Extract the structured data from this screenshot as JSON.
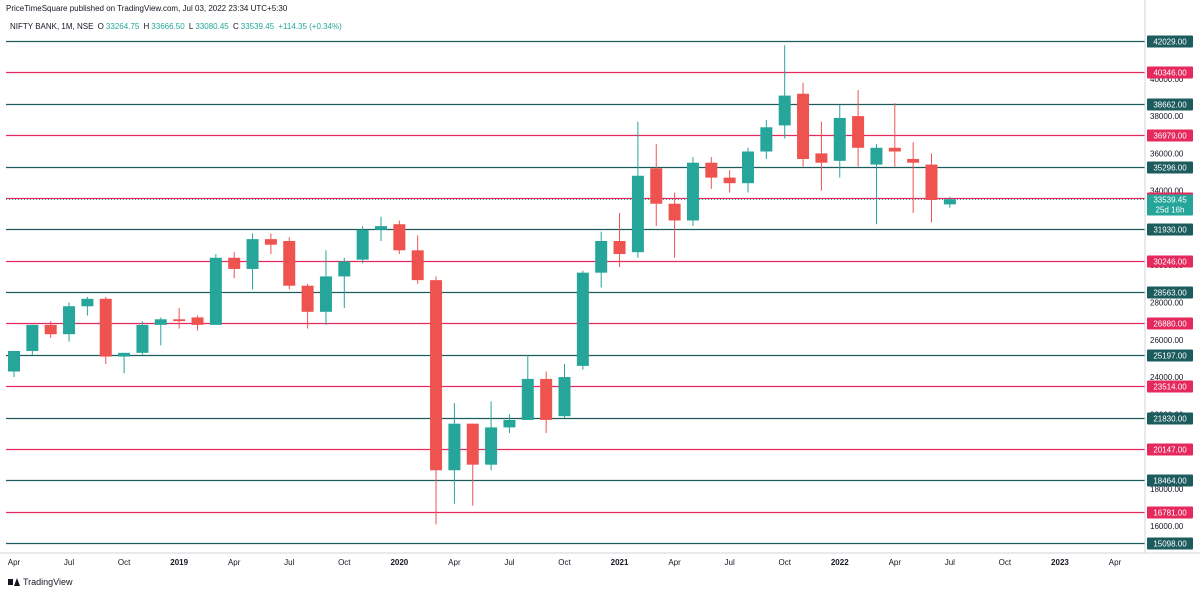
{
  "header": {
    "publisher": "PriceTimeSquare published on TradingView.com, Jul 03, 2022 23:34 UTC+5:30"
  },
  "legend": {
    "symbol": "NIFTY BANK, 1M, NSE",
    "o_label": "O",
    "o_value": "33264.75",
    "h_label": "H",
    "h_value": "33666.50",
    "l_label": "L",
    "l_value": "33080.45",
    "c_label": "C",
    "c_value": "33539.45",
    "change": "+114.35 (+0.34%)"
  },
  "branding": {
    "label": "TradingView"
  },
  "colors": {
    "up": "#26a69a",
    "down": "#ef5350",
    "green_level": "#1c5b5e",
    "red_level": "#e5295c",
    "axis_text": "#131722"
  },
  "chart_data": {
    "type": "candlestick",
    "title": "",
    "y_axis_ticks": [
      16000,
      18000,
      20000,
      22000,
      24000,
      26000,
      28000,
      30000,
      32000,
      34000,
      36000,
      38000,
      40000
    ],
    "ylim": [
      15098,
      42029
    ],
    "x_axis_labels": [
      {
        "label": "Apr",
        "index": 0
      },
      {
        "label": "Jul",
        "index": 3
      },
      {
        "label": "Oct",
        "index": 6
      },
      {
        "label": "2019",
        "index": 9,
        "bold": true
      },
      {
        "label": "Apr",
        "index": 12
      },
      {
        "label": "Jul",
        "index": 15
      },
      {
        "label": "Oct",
        "index": 18
      },
      {
        "label": "2020",
        "index": 21,
        "bold": true
      },
      {
        "label": "Apr",
        "index": 24
      },
      {
        "label": "Jul",
        "index": 27
      },
      {
        "label": "Oct",
        "index": 30
      },
      {
        "label": "2021",
        "index": 33,
        "bold": true
      },
      {
        "label": "Apr",
        "index": 36
      },
      {
        "label": "Jul",
        "index": 39
      },
      {
        "label": "Oct",
        "index": 42
      },
      {
        "label": "2022",
        "index": 45,
        "bold": true
      },
      {
        "label": "Apr",
        "index": 48
      },
      {
        "label": "Jul",
        "index": 51
      },
      {
        "label": "Oct",
        "index": 54
      },
      {
        "label": "2023",
        "index": 57,
        "bold": true
      },
      {
        "label": "Apr",
        "index": 60
      }
    ],
    "levels": [
      {
        "value": 42029,
        "label": "42029.00",
        "color": "green"
      },
      {
        "value": 40346,
        "label": "40346.00",
        "color": "red"
      },
      {
        "value": 38662,
        "label": "38662.00",
        "color": "green"
      },
      {
        "value": 36979,
        "label": "36979.00",
        "color": "red"
      },
      {
        "value": 35296,
        "label": "35296.00",
        "color": "green"
      },
      {
        "value": 33613,
        "label": "33613.00",
        "color": "red"
      },
      {
        "value": 31930,
        "label": "31930.00",
        "color": "green"
      },
      {
        "value": 30246,
        "label": "30246.00",
        "color": "red"
      },
      {
        "value": 28563,
        "label": "28563.00",
        "color": "green"
      },
      {
        "value": 26880,
        "label": "26880.00",
        "color": "red"
      },
      {
        "value": 25197,
        "label": "25197.00",
        "color": "green"
      },
      {
        "value": 23514,
        "label": "23514.00",
        "color": "red"
      },
      {
        "value": 21830,
        "label": "21830.00",
        "color": "green"
      },
      {
        "value": 20147,
        "label": "20147.00",
        "color": "red"
      },
      {
        "value": 18464,
        "label": "18464.00",
        "color": "green"
      },
      {
        "value": 16781,
        "label": "16781.00",
        "color": "red"
      },
      {
        "value": 15098,
        "label": "15098.00",
        "color": "green"
      }
    ],
    "current_price": {
      "value": 33539.45,
      "label": "33539.45",
      "countdown": "25d 16h"
    },
    "candles": [
      {
        "month": "2018-04",
        "o": 24300,
        "h": 25400,
        "l": 24000,
        "c": 25400
      },
      {
        "month": "2018-05",
        "o": 25400,
        "h": 26800,
        "l": 25200,
        "c": 26800
      },
      {
        "month": "2018-06",
        "o": 26800,
        "h": 27000,
        "l": 26100,
        "c": 26300
      },
      {
        "month": "2018-07",
        "o": 26300,
        "h": 28000,
        "l": 25900,
        "c": 27800
      },
      {
        "month": "2018-08",
        "o": 27800,
        "h": 28300,
        "l": 27300,
        "c": 28200
      },
      {
        "month": "2018-09",
        "o": 28200,
        "h": 28300,
        "l": 24700,
        "c": 25100
      },
      {
        "month": "2018-10",
        "o": 25100,
        "h": 25300,
        "l": 24200,
        "c": 25300
      },
      {
        "month": "2018-11",
        "o": 25300,
        "h": 27000,
        "l": 25200,
        "c": 26800
      },
      {
        "month": "2018-12",
        "o": 26800,
        "h": 27200,
        "l": 25700,
        "c": 27100
      },
      {
        "month": "2019-01",
        "o": 27100,
        "h": 27700,
        "l": 26600,
        "c": 27000
      },
      {
        "month": "2019-02",
        "o": 27200,
        "h": 27300,
        "l": 26500,
        "c": 26800
      },
      {
        "month": "2019-03",
        "o": 26800,
        "h": 30600,
        "l": 26800,
        "c": 30400
      },
      {
        "month": "2019-04",
        "o": 30400,
        "h": 30700,
        "l": 29300,
        "c": 29800
      },
      {
        "month": "2019-05",
        "o": 29800,
        "h": 31700,
        "l": 28700,
        "c": 31400
      },
      {
        "month": "2019-06",
        "o": 31400,
        "h": 31700,
        "l": 30600,
        "c": 31100
      },
      {
        "month": "2019-07",
        "o": 31300,
        "h": 31500,
        "l": 28700,
        "c": 28900
      },
      {
        "month": "2019-08",
        "o": 28900,
        "h": 29000,
        "l": 26600,
        "c": 27500
      },
      {
        "month": "2019-09",
        "o": 27500,
        "h": 30800,
        "l": 26800,
        "c": 29400
      },
      {
        "month": "2019-10",
        "o": 29400,
        "h": 30400,
        "l": 27700,
        "c": 30200
      },
      {
        "month": "2019-11",
        "o": 30300,
        "h": 32100,
        "l": 30100,
        "c": 31900
      },
      {
        "month": "2019-12",
        "o": 31900,
        "h": 32600,
        "l": 31300,
        "c": 32100
      },
      {
        "month": "2020-01",
        "o": 32200,
        "h": 32400,
        "l": 30600,
        "c": 30800
      },
      {
        "month": "2020-02",
        "o": 30800,
        "h": 31600,
        "l": 29000,
        "c": 29200
      },
      {
        "month": "2020-03",
        "o": 29200,
        "h": 29400,
        "l": 16100,
        "c": 19000
      },
      {
        "month": "2020-04",
        "o": 19000,
        "h": 22600,
        "l": 17200,
        "c": 21500
      },
      {
        "month": "2020-05",
        "o": 21500,
        "h": 21500,
        "l": 17100,
        "c": 19300
      },
      {
        "month": "2020-06",
        "o": 19300,
        "h": 22700,
        "l": 19000,
        "c": 21300
      },
      {
        "month": "2020-07",
        "o": 21300,
        "h": 22000,
        "l": 21000,
        "c": 21700
      },
      {
        "month": "2020-08",
        "o": 21700,
        "h": 25200,
        "l": 21700,
        "c": 23900
      },
      {
        "month": "2020-09",
        "o": 23900,
        "h": 24300,
        "l": 21000,
        "c": 21700
      },
      {
        "month": "2020-10",
        "o": 21900,
        "h": 24700,
        "l": 21800,
        "c": 24000
      },
      {
        "month": "2020-11",
        "o": 24600,
        "h": 29700,
        "l": 24400,
        "c": 29600
      },
      {
        "month": "2020-12",
        "o": 29600,
        "h": 31800,
        "l": 28800,
        "c": 31300
      },
      {
        "month": "2021-01",
        "o": 31300,
        "h": 32800,
        "l": 29900,
        "c": 30600
      },
      {
        "month": "2021-02",
        "o": 30700,
        "h": 37700,
        "l": 30400,
        "c": 34800
      },
      {
        "month": "2021-03",
        "o": 35200,
        "h": 36500,
        "l": 32100,
        "c": 33300
      },
      {
        "month": "2021-04",
        "o": 33300,
        "h": 33900,
        "l": 30400,
        "c": 32400
      },
      {
        "month": "2021-05",
        "o": 32400,
        "h": 35800,
        "l": 32100,
        "c": 35500
      },
      {
        "month": "2021-06",
        "o": 35500,
        "h": 35800,
        "l": 34100,
        "c": 34700
      },
      {
        "month": "2021-07",
        "o": 34700,
        "h": 35100,
        "l": 33900,
        "c": 34400
      },
      {
        "month": "2021-08",
        "o": 34400,
        "h": 36300,
        "l": 33900,
        "c": 36100
      },
      {
        "month": "2021-09",
        "o": 36100,
        "h": 37800,
        "l": 35700,
        "c": 37400
      },
      {
        "month": "2021-10",
        "o": 37500,
        "h": 41800,
        "l": 36800,
        "c": 39100
      },
      {
        "month": "2021-11",
        "o": 39200,
        "h": 39800,
        "l": 35300,
        "c": 35700
      },
      {
        "month": "2021-12",
        "o": 36000,
        "h": 37700,
        "l": 34000,
        "c": 35500
      },
      {
        "month": "2022-01",
        "o": 35600,
        "h": 38600,
        "l": 34700,
        "c": 37900
      },
      {
        "month": "2022-02",
        "o": 38000,
        "h": 39400,
        "l": 35300,
        "c": 36300
      },
      {
        "month": "2022-03",
        "o": 35400,
        "h": 36500,
        "l": 32200,
        "c": 36300
      },
      {
        "month": "2022-04",
        "o": 36300,
        "h": 38700,
        "l": 35300,
        "c": 36100
      },
      {
        "month": "2022-05",
        "o": 35700,
        "h": 36600,
        "l": 32800,
        "c": 35500
      },
      {
        "month": "2022-06",
        "o": 35400,
        "h": 36000,
        "l": 32300,
        "c": 33500
      },
      {
        "month": "2022-07",
        "o": 33265,
        "h": 33667,
        "l": 33080,
        "c": 33539
      }
    ]
  }
}
